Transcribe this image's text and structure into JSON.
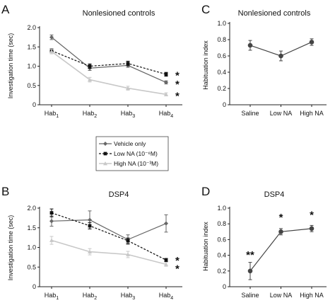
{
  "colors": {
    "vehicle": "#666666",
    "low_na": "#111111",
    "high_na": "#c8c8c8",
    "single": "#444444"
  },
  "legend": {
    "entries": [
      {
        "key": "vehicle",
        "label": "Vehicle only"
      },
      {
        "key": "low",
        "label": "Low NA (10⁻⁶M)"
      },
      {
        "key": "high",
        "label": "High NA (10⁻³M)"
      }
    ]
  },
  "chart_data": [
    {
      "panel": "A",
      "type": "line",
      "title": "Nonlesioned controls",
      "ylabel": "Investigation time (sec)",
      "xlabel": "",
      "categories": [
        "Hab1",
        "Hab2",
        "Hab3",
        "Hab4"
      ],
      "ylim": [
        0,
        2.0
      ],
      "yticks": [
        "0",
        "0.5",
        "1.0",
        "1.5",
        "2.0"
      ],
      "grid": false,
      "series": [
        {
          "name": "Vehicle only",
          "key": "vehicle",
          "values": [
            1.75,
            0.95,
            1.02,
            0.58
          ],
          "errors": [
            0.06,
            0.06,
            0.05,
            0.04
          ]
        },
        {
          "name": "Low NA (10⁻⁶M)",
          "key": "low",
          "values": [
            1.4,
            1.0,
            1.07,
            0.79
          ],
          "errors": [
            0.05,
            0.06,
            0.06,
            0.05
          ]
        },
        {
          "name": "High NA (10⁻³M)",
          "key": "high",
          "values": [
            1.38,
            0.65,
            0.43,
            0.27
          ],
          "errors": [
            0.06,
            0.06,
            0.05,
            0.04
          ]
        }
      ],
      "annotations": [
        {
          "category": "Hab4",
          "value": 0.8,
          "text": "*"
        },
        {
          "category": "Hab4",
          "value": 0.57,
          "text": "*"
        },
        {
          "category": "Hab4",
          "value": 0.27,
          "text": "*"
        }
      ]
    },
    {
      "panel": "B",
      "type": "line",
      "title": "DSP4",
      "ylabel": "Investigation time (sec)",
      "xlabel": "",
      "categories": [
        "Hab1",
        "Hab2",
        "Hab3",
        "Hab4"
      ],
      "ylim": [
        0,
        2.0
      ],
      "yticks": [
        "0",
        "0.5",
        "1.0",
        "1.5",
        "2.0"
      ],
      "grid": false,
      "series": [
        {
          "name": "Vehicle only",
          "key": "vehicle",
          "values": [
            1.67,
            1.7,
            1.2,
            1.61
          ],
          "errors": [
            0.13,
            0.23,
            0.12,
            0.22
          ]
        },
        {
          "name": "Low NA (10⁻⁶M)",
          "key": "low",
          "values": [
            1.88,
            1.55,
            1.17,
            0.68
          ],
          "errors": [
            0.1,
            0.08,
            0.07,
            0.04
          ]
        },
        {
          "name": "High NA (10⁻³M)",
          "key": "high",
          "values": [
            1.18,
            0.89,
            0.82,
            0.57
          ],
          "errors": [
            0.1,
            0.08,
            0.08,
            0.05
          ]
        }
      ],
      "annotations": [
        {
          "category": "Hab4",
          "value": 0.7,
          "text": "*"
        },
        {
          "category": "Hab4",
          "value": 0.5,
          "text": "*"
        }
      ]
    },
    {
      "panel": "C",
      "type": "line",
      "title": "Nonlesioned controls",
      "ylabel": "Habituation index",
      "xlabel": "",
      "categories": [
        "Saline",
        "Low NA",
        "High NA"
      ],
      "ylim": [
        0,
        1.0
      ],
      "yticks": [
        "0",
        "0.2",
        "0.4",
        "0.6",
        "0.8",
        "1.0"
      ],
      "grid": false,
      "series": [
        {
          "key": "single",
          "values": [
            0.73,
            0.6,
            0.77
          ],
          "errors": [
            0.06,
            0.06,
            0.04
          ]
        }
      ],
      "annotations": []
    },
    {
      "panel": "D",
      "type": "line",
      "title": "DSP4",
      "ylabel": "Habituation index",
      "xlabel": "",
      "categories": [
        "Saline",
        "Low NA",
        "High NA"
      ],
      "ylim": [
        0,
        1.0
      ],
      "yticks": [
        "0",
        "0.2",
        "0.4",
        "0.6",
        "0.8",
        "1.0"
      ],
      "grid": false,
      "series": [
        {
          "key": "single",
          "values": [
            0.2,
            0.7,
            0.74
          ],
          "errors": [
            0.11,
            0.04,
            0.04
          ]
        }
      ],
      "annotations": [
        {
          "category": "Saline",
          "value": 0.36,
          "text": "**"
        },
        {
          "category": "Low NA",
          "value": 0.84,
          "text": "*"
        },
        {
          "category": "High NA",
          "value": 0.87,
          "text": "*"
        }
      ]
    }
  ]
}
